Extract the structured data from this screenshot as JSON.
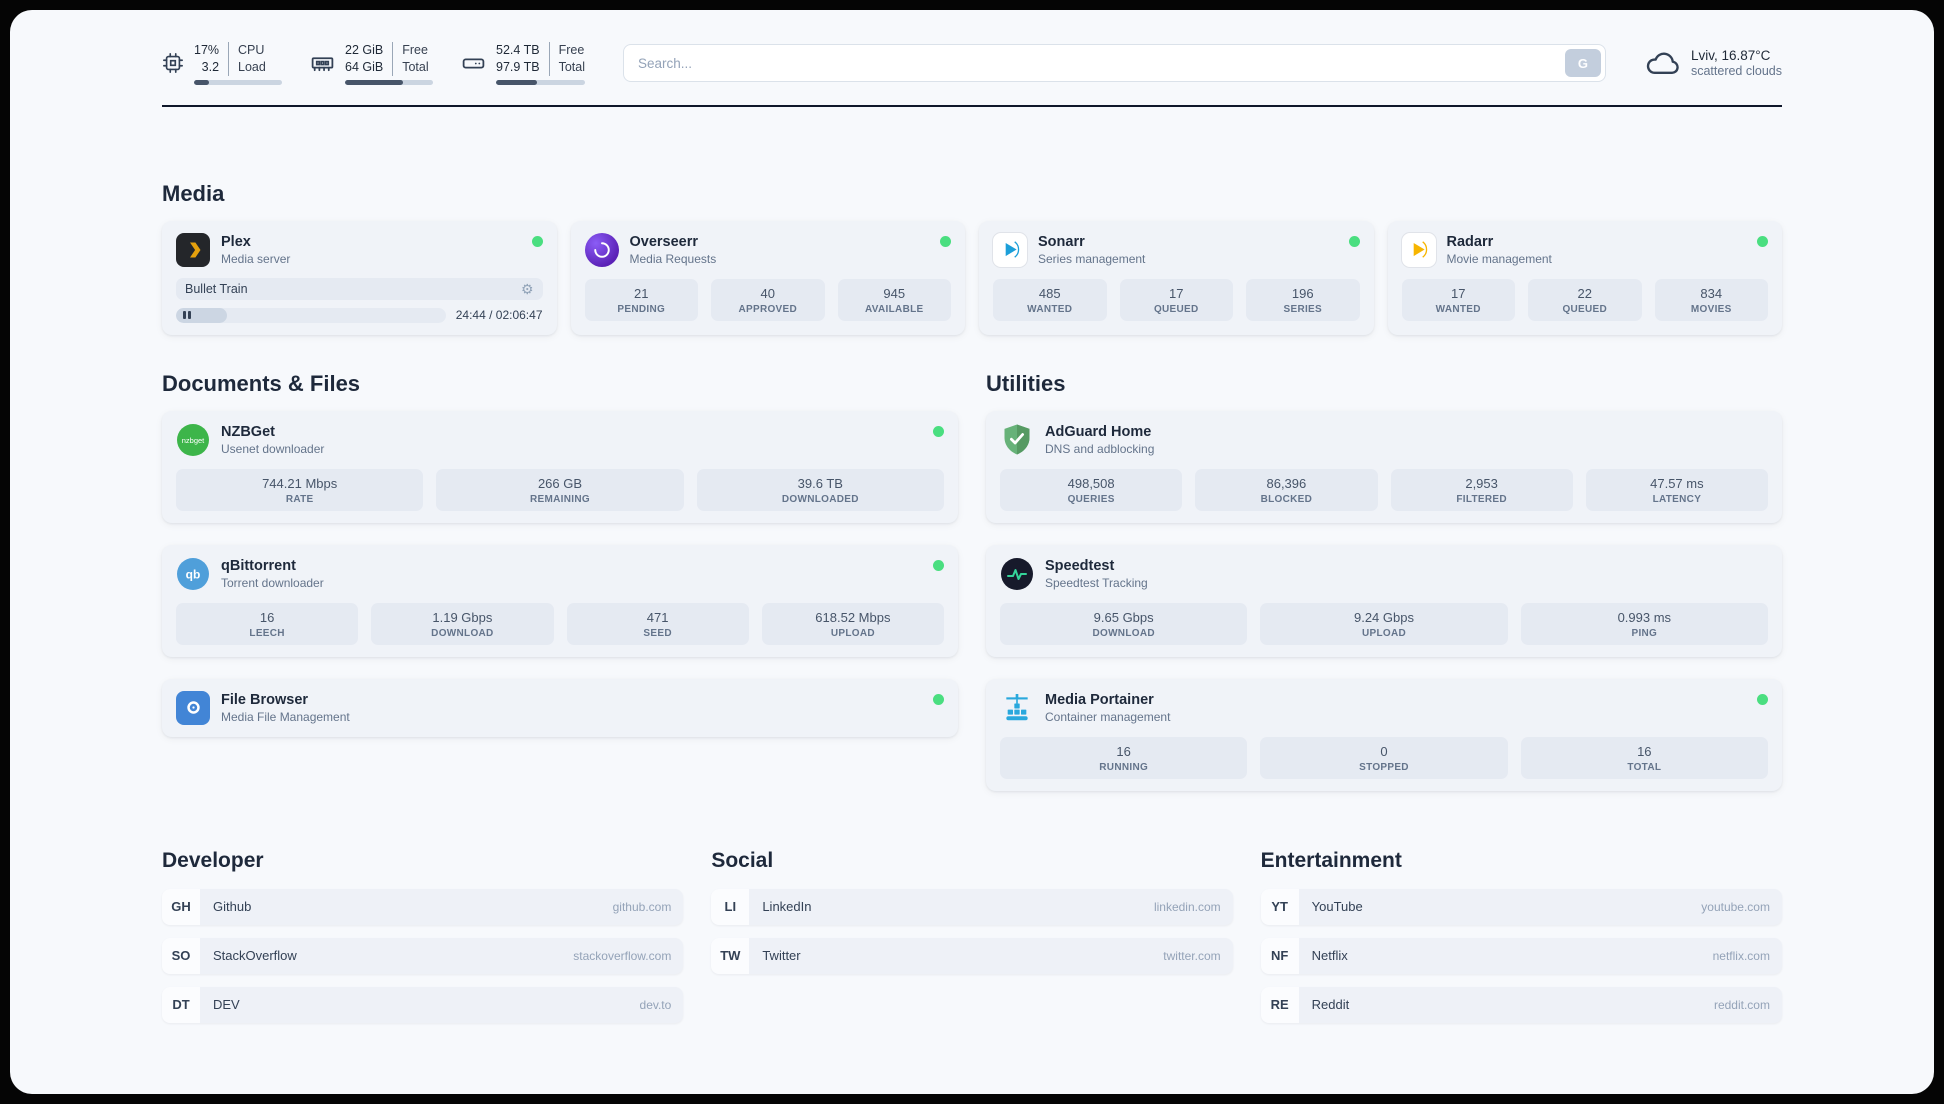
{
  "topbar": {
    "resources": [
      {
        "icon": "cpu-icon",
        "values": [
          "17%",
          "3.2"
        ],
        "labels": [
          "CPU",
          "Load"
        ],
        "percent": 17
      },
      {
        "icon": "memory-icon",
        "values": [
          "22 GiB",
          "64 GiB"
        ],
        "labels": [
          "Free",
          "Total"
        ],
        "percent": 66
      },
      {
        "icon": "disk-icon",
        "values": [
          "52.4 TB",
          "97.9 TB"
        ],
        "labels": [
          "Free",
          "Total"
        ],
        "percent": 46
      }
    ],
    "search": {
      "placeholder": "Search...",
      "button_label": "G"
    },
    "weather": {
      "icon": "cloud-icon",
      "location": "Lviv, 16.87°C",
      "condition": "scattered clouds"
    }
  },
  "groups": {
    "media": {
      "title": "Media",
      "services": [
        {
          "name": "Plex",
          "desc": "Media server",
          "icon": "plex-icon",
          "status": "online",
          "player": {
            "title": "Bullet Train",
            "time": "24:44 / 02:06:47",
            "percent": 19
          }
        },
        {
          "name": "Overseerr",
          "desc": "Media Requests",
          "icon": "overseerr-icon",
          "status": "online",
          "stats": [
            {
              "value": "21",
              "label": "PENDING"
            },
            {
              "value": "40",
              "label": "APPROVED"
            },
            {
              "value": "945",
              "label": "AVAILABLE"
            }
          ]
        },
        {
          "name": "Sonarr",
          "desc": "Series management",
          "icon": "sonarr-icon",
          "status": "online",
          "stats": [
            {
              "value": "485",
              "label": "WANTED"
            },
            {
              "value": "17",
              "label": "QUEUED"
            },
            {
              "value": "196",
              "label": "SERIES"
            }
          ]
        },
        {
          "name": "Radarr",
          "desc": "Movie management",
          "icon": "radarr-icon",
          "status": "online",
          "stats": [
            {
              "value": "17",
              "label": "WANTED"
            },
            {
              "value": "22",
              "label": "QUEUED"
            },
            {
              "value": "834",
              "label": "MOVIES"
            }
          ]
        }
      ]
    },
    "documents": {
      "title": "Documents & Files",
      "services": [
        {
          "name": "NZBGet",
          "desc": "Usenet downloader",
          "icon": "nzbget-icon",
          "status": "online",
          "stats": [
            {
              "value": "744.21 Mbps",
              "label": "RATE"
            },
            {
              "value": "266 GB",
              "label": "REMAINING"
            },
            {
              "value": "39.6 TB",
              "label": "DOWNLOADED"
            }
          ]
        },
        {
          "name": "qBittorrent",
          "desc": "Torrent downloader",
          "icon": "qbittorrent-icon",
          "status": "online",
          "stats": [
            {
              "value": "16",
              "label": "LEECH"
            },
            {
              "value": "1.19 Gbps",
              "label": "DOWNLOAD"
            },
            {
              "value": "471",
              "label": "SEED"
            },
            {
              "value": "618.52 Mbps",
              "label": "UPLOAD"
            }
          ]
        },
        {
          "name": "File Browser",
          "desc": "Media File Management",
          "icon": "filebrowser-icon",
          "status": "online"
        }
      ]
    },
    "utilities": {
      "title": "Utilities",
      "services": [
        {
          "name": "AdGuard Home",
          "desc": "DNS and adblocking",
          "icon": "adguard-icon",
          "stats": [
            {
              "value": "498,508",
              "label": "QUERIES"
            },
            {
              "value": "86,396",
              "label": "BLOCKED"
            },
            {
              "value": "2,953",
              "label": "FILTERED"
            },
            {
              "value": "47.57 ms",
              "label": "LATENCY"
            }
          ]
        },
        {
          "name": "Speedtest",
          "desc": "Speedtest Tracking",
          "icon": "speedtest-icon",
          "stats": [
            {
              "value": "9.65 Gbps",
              "label": "DOWNLOAD"
            },
            {
              "value": "9.24 Gbps",
              "label": "UPLOAD"
            },
            {
              "value": "0.993 ms",
              "label": "PING"
            }
          ]
        },
        {
          "name": "Media Portainer",
          "desc": "Container management",
          "icon": "portainer-icon",
          "status": "online",
          "stats": [
            {
              "value": "16",
              "label": "RUNNING"
            },
            {
              "value": "0",
              "label": "STOPPED"
            },
            {
              "value": "16",
              "label": "TOTAL"
            }
          ]
        }
      ]
    }
  },
  "bookmarks": [
    {
      "title": "Developer",
      "items": [
        {
          "abbr": "GH",
          "name": "Github",
          "url": "github.com"
        },
        {
          "abbr": "SO",
          "name": "StackOverflow",
          "url": "stackoverflow.com"
        },
        {
          "abbr": "DT",
          "name": "DEV",
          "url": "dev.to"
        }
      ]
    },
    {
      "title": "Social",
      "items": [
        {
          "abbr": "LI",
          "name": "LinkedIn",
          "url": "linkedin.com"
        },
        {
          "abbr": "TW",
          "name": "Twitter",
          "url": "twitter.com"
        }
      ]
    },
    {
      "title": "Entertainment",
      "items": [
        {
          "abbr": "YT",
          "name": "YouTube",
          "url": "youtube.com"
        },
        {
          "abbr": "NF",
          "name": "Netflix",
          "url": "netflix.com"
        },
        {
          "abbr": "RE",
          "name": "Reddit",
          "url": "reddit.com"
        }
      ]
    }
  ],
  "colors": {
    "status_online": "#4ade80",
    "page_background": "#f7f9fc",
    "card_background": "#f0f3f8",
    "stat_background": "#e5eaf2",
    "plex_orange": "#e5a00d",
    "sonarr_blue": "#1c9fd9",
    "radarr_amber": "#f7b500",
    "nzbget_green": "#3db54a",
    "qbittorrent_blue": "#4f9fda",
    "adguard_green": "#67b279",
    "speedtest_pulse": "#34d399",
    "portainer_blue": "#29a8dd"
  }
}
